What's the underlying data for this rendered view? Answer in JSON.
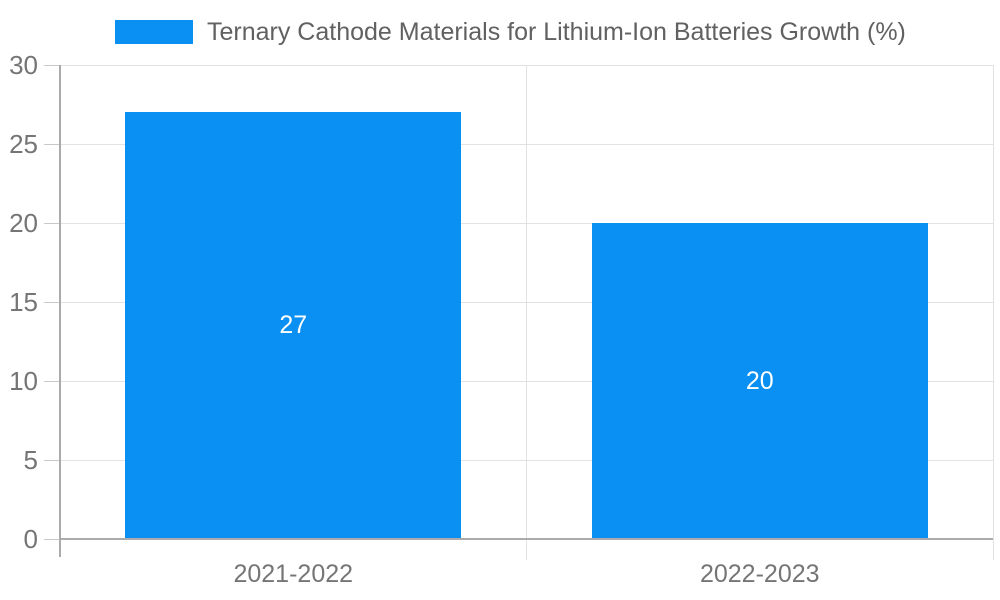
{
  "chart_data": {
    "type": "bar",
    "title": "Ternary Cathode Materials for Lithium-Ion Batteries Growth (%)",
    "categories": [
      "2021-2022",
      "2022-2023"
    ],
    "values": [
      27,
      20
    ],
    "value_labels": [
      "27",
      "20"
    ],
    "xlabel": "",
    "ylabel": "",
    "ylim": [
      0,
      30
    ],
    "yticks": [
      0,
      5,
      10,
      15,
      20,
      25,
      30
    ],
    "grid": true,
    "legend_position": "top",
    "colors": {
      "bar": "#0a90f2",
      "value_label": "#ffffff",
      "axis_text": "#757575",
      "title_text": "#616161",
      "grid": "#e2e2e2",
      "axis_line": "#ababab",
      "tick": "#c9c9c9"
    }
  }
}
